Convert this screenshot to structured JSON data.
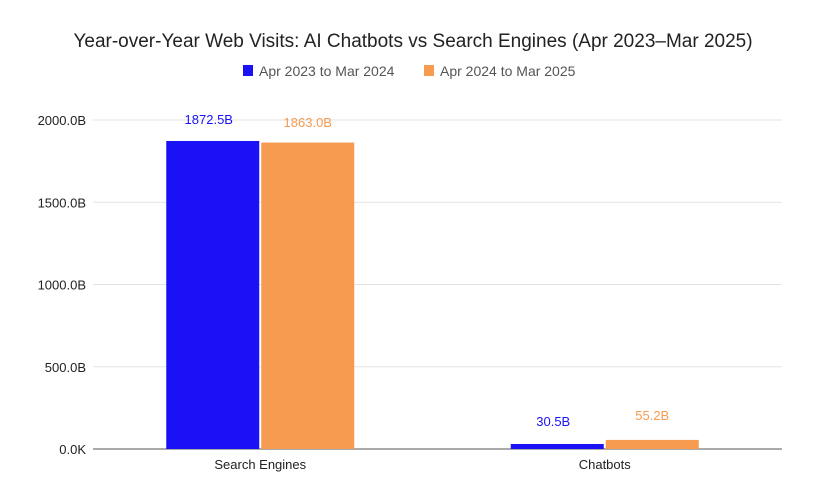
{
  "chart_data": {
    "type": "bar",
    "title": "Year-over-Year Web Visits: AI Chatbots vs Search Engines (Apr 2023–Mar 2025)",
    "xlabel": "",
    "ylabel": "",
    "categories": [
      "Search Engines",
      "Chatbots"
    ],
    "series": [
      {
        "name": "Apr 2023 to Mar 2024",
        "color": "#1a12f5",
        "values": [
          1872.5,
          30.5
        ],
        "labels": [
          "1872.5B",
          "30.5B"
        ]
      },
      {
        "name": "Apr 2024 to Mar 2025",
        "color": "#f79b50",
        "values": [
          1863.0,
          55.2
        ],
        "labels": [
          "1863.0B",
          "55.2B"
        ]
      }
    ],
    "ylim": [
      0,
      2000
    ],
    "yticks": [
      0,
      500,
      1000,
      1500,
      2000
    ],
    "ytick_labels": [
      "0.0K",
      "500.0B",
      "1000.0B",
      "1500.0B",
      "2000.0B"
    ],
    "grid": true,
    "legend_placement": "top-center",
    "units": "billions of visits"
  }
}
